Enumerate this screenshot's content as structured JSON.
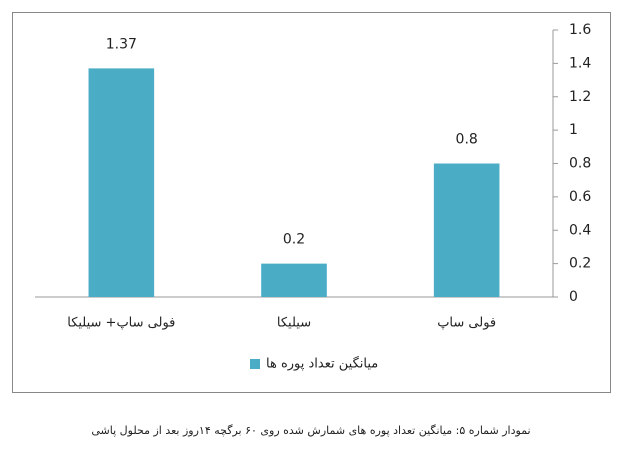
{
  "chart_data": {
    "type": "bar",
    "categories": [
      "فولی ساپ+ سیلیکا",
      "سیلیکا",
      "فولی ساپ"
    ],
    "series": [
      {
        "name": "میانگین تعداد پوره ها",
        "color": "#4bacc6",
        "values": [
          1.37,
          0.2,
          0.8
        ]
      }
    ],
    "ylim": [
      0,
      1.6
    ],
    "yticks": [
      0,
      0.2,
      0.4,
      0.6,
      0.8,
      1,
      1.2,
      1.4,
      1.6
    ],
    "y_axis_side": "right",
    "grid": false,
    "legend": "bottom",
    "caption": "نمودار شماره ۵: میانگین تعداد پوره های شمارش شده روی ۶۰ برگچه ۱۴روز بعد از محلول پاشی"
  }
}
